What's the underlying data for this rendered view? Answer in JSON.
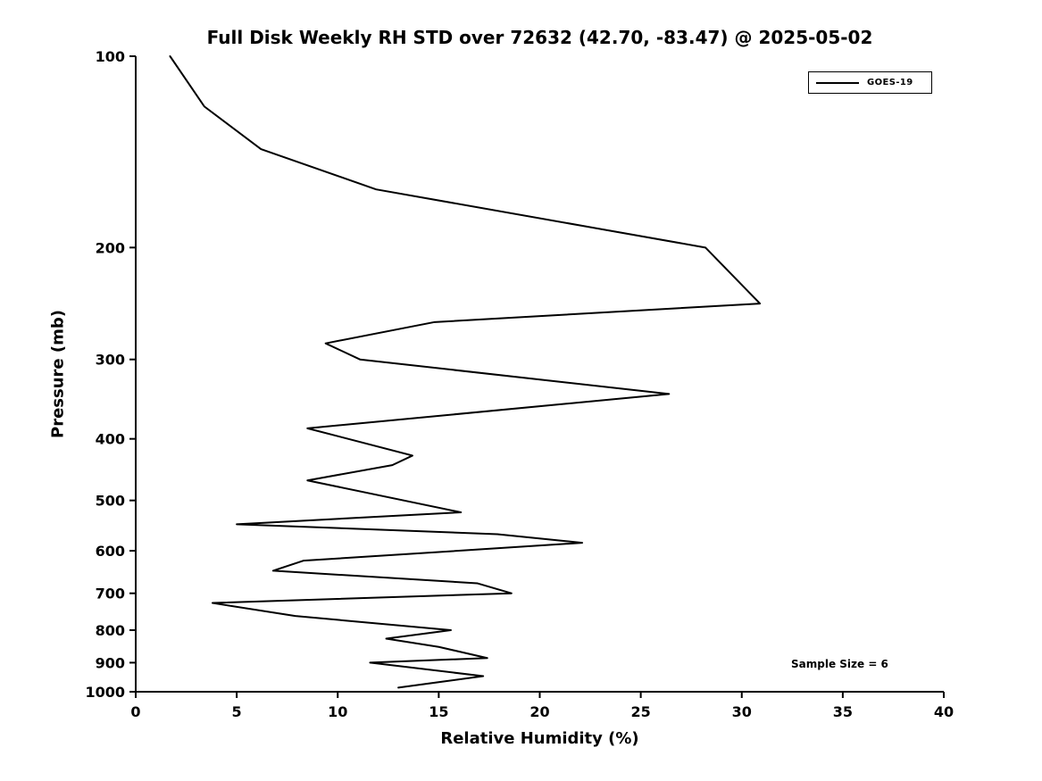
{
  "chart_data": {
    "type": "line",
    "title": "Full Disk Weekly RH STD over 72632 (42.70, -83.47) @ 2025-05-02",
    "xlabel": "Relative Humidity (%)",
    "ylabel": "Pressure (mb)",
    "xlim": [
      0,
      40
    ],
    "x_ticks": [
      0,
      5,
      10,
      15,
      20,
      25,
      30,
      35,
      40
    ],
    "ylim": [
      100,
      1000
    ],
    "y_ticks": [
      100,
      200,
      300,
      400,
      500,
      600,
      700,
      800,
      900,
      1000
    ],
    "y_scale": "log",
    "y_inverted": true,
    "grid": false,
    "legend_position": "upper right",
    "annotations": [
      {
        "text": "Sample Size = 6"
      }
    ],
    "series": [
      {
        "name": "GOES-19",
        "color": "#000000",
        "points": [
          {
            "pressure_mb": 100,
            "rh_percent": 1.7
          },
          {
            "pressure_mb": 120,
            "rh_percent": 3.4
          },
          {
            "pressure_mb": 140,
            "rh_percent": 6.2
          },
          {
            "pressure_mb": 162,
            "rh_percent": 11.9
          },
          {
            "pressure_mb": 200,
            "rh_percent": 28.2
          },
          {
            "pressure_mb": 245,
            "rh_percent": 30.9
          },
          {
            "pressure_mb": 262,
            "rh_percent": 14.8
          },
          {
            "pressure_mb": 283,
            "rh_percent": 9.4
          },
          {
            "pressure_mb": 300,
            "rh_percent": 11.1
          },
          {
            "pressure_mb": 340,
            "rh_percent": 26.4
          },
          {
            "pressure_mb": 385,
            "rh_percent": 8.5
          },
          {
            "pressure_mb": 425,
            "rh_percent": 13.7
          },
          {
            "pressure_mb": 440,
            "rh_percent": 12.7
          },
          {
            "pressure_mb": 465,
            "rh_percent": 8.5
          },
          {
            "pressure_mb": 522,
            "rh_percent": 16.1
          },
          {
            "pressure_mb": 545,
            "rh_percent": 5.0
          },
          {
            "pressure_mb": 565,
            "rh_percent": 17.9
          },
          {
            "pressure_mb": 583,
            "rh_percent": 22.1
          },
          {
            "pressure_mb": 622,
            "rh_percent": 8.3
          },
          {
            "pressure_mb": 645,
            "rh_percent": 6.8
          },
          {
            "pressure_mb": 675,
            "rh_percent": 16.9
          },
          {
            "pressure_mb": 700,
            "rh_percent": 18.6
          },
          {
            "pressure_mb": 725,
            "rh_percent": 3.8
          },
          {
            "pressure_mb": 760,
            "rh_percent": 7.9
          },
          {
            "pressure_mb": 800,
            "rh_percent": 15.6
          },
          {
            "pressure_mb": 825,
            "rh_percent": 12.4
          },
          {
            "pressure_mb": 850,
            "rh_percent": 15.0
          },
          {
            "pressure_mb": 885,
            "rh_percent": 17.4
          },
          {
            "pressure_mb": 900,
            "rh_percent": 11.6
          },
          {
            "pressure_mb": 945,
            "rh_percent": 17.2
          },
          {
            "pressure_mb": 985,
            "rh_percent": 13.0
          }
        ]
      }
    ]
  }
}
